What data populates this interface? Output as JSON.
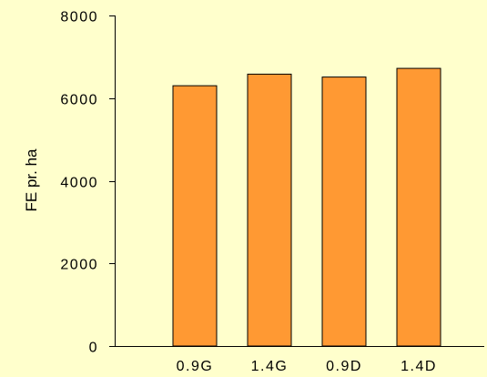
{
  "chart_data": {
    "type": "bar",
    "categories": [
      "0.9G",
      "1.4G",
      "0.9D",
      "1.4D"
    ],
    "values": [
      6300,
      6580,
      6510,
      6720
    ],
    "title": "",
    "xlabel": "",
    "ylabel": "FE pr. ha",
    "ylim": [
      0,
      8000
    ],
    "yticks": [
      0,
      2000,
      4000,
      6000,
      8000
    ],
    "ytick_labels": [
      "0",
      "2000",
      "4000",
      "6000",
      "8000"
    ],
    "grid": false,
    "legend": "none"
  },
  "colors": {
    "background": "#ffffcc",
    "bar_fill": "#ff9933",
    "bar_stroke": "#000000",
    "axis": "#000000"
  }
}
